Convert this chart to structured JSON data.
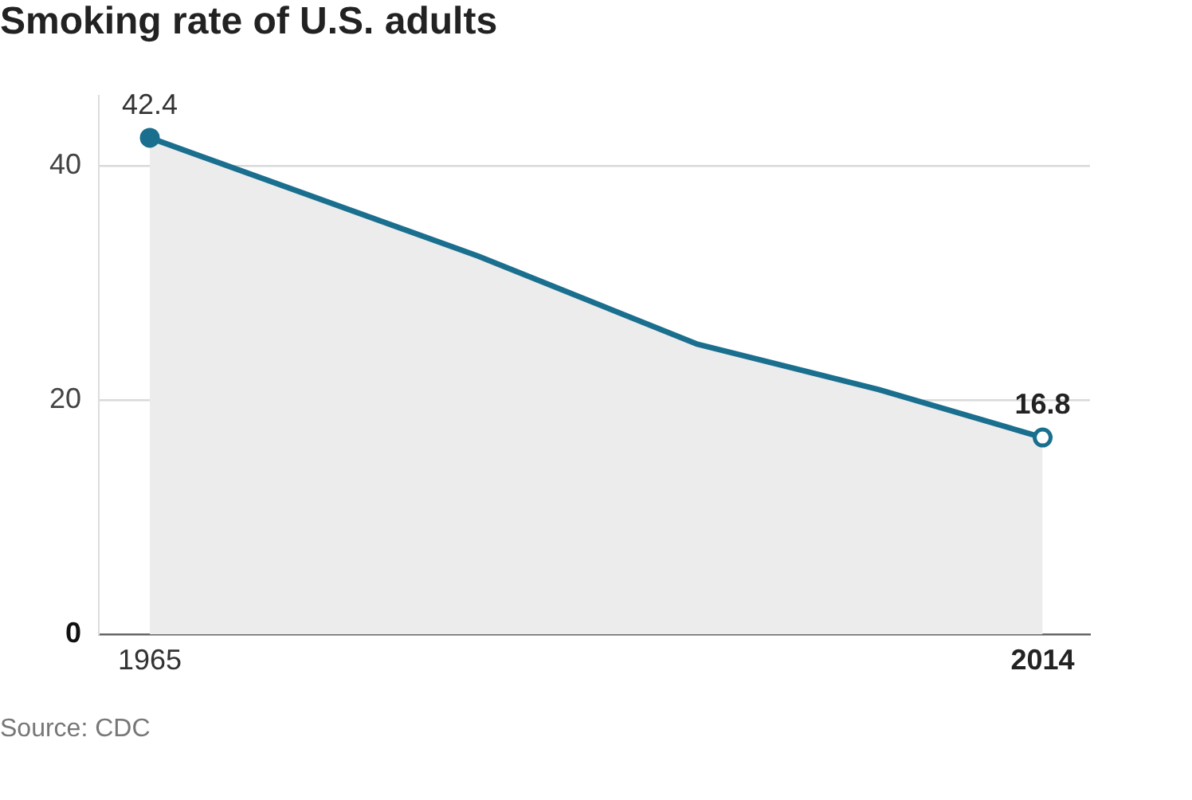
{
  "chart_data": {
    "type": "area",
    "title": "Smoking rate of U.S. adults",
    "annotations": [
      "Source: CDC"
    ],
    "x": [
      1965,
      1983,
      1995,
      2005,
      2014
    ],
    "series": [
      {
        "color": "#1a6f8f",
        "values": [
          42.4,
          32.3,
          24.8,
          20.9,
          16.8
        ],
        "value_labels": [
          "42.4",
          null,
          null,
          null,
          "16.8"
        ]
      }
    ],
    "xlim": [
      1962.2,
      2016.6
    ],
    "xticks": [
      1965,
      2014
    ],
    "ylim": [
      0,
      46
    ],
    "yticks": [
      0,
      20,
      40
    ],
    "grid": "y"
  }
}
